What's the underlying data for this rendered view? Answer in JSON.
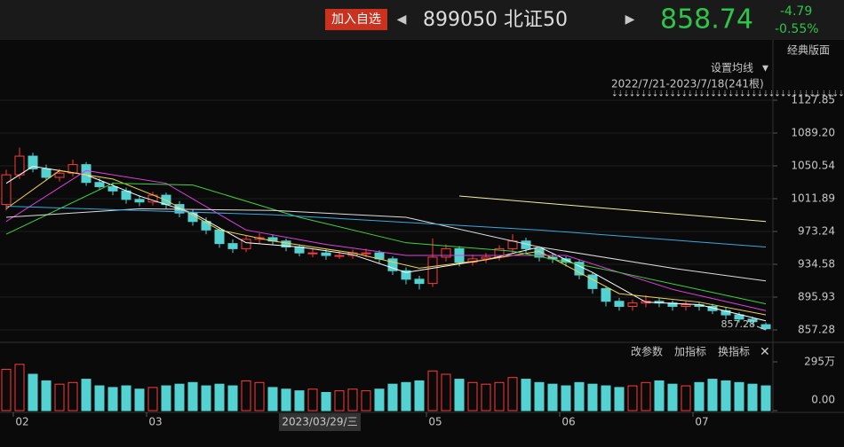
{
  "header": {
    "button": "加入自选",
    "code_name": "899050 北证50",
    "price": "858.74",
    "change": "-4.79",
    "change_pct": "-0.55%",
    "layout": "经典版面"
  },
  "controls": {
    "ma_setting": "设置均线",
    "range": "2022/7/21-2023/7/18(241根)",
    "toolbar": [
      "改参数",
      "加指标",
      "换指标"
    ],
    "cursor_label": "2023/03/29/三"
  },
  "chart_data": {
    "type": "candlestick",
    "up_color": "#ff3b3b",
    "down_color": "#54d1d1",
    "grid": true,
    "ylim": [
      843.7,
      1172.8
    ],
    "yticks": [
      {
        "value": 857.28,
        "label": "857.28"
      },
      {
        "value": 895.93,
        "label": "895.93"
      },
      {
        "value": 934.58,
        "label": "934.58"
      },
      {
        "value": 973.24,
        "label": "973.24"
      },
      {
        "value": 1011.89,
        "label": "1011.89"
      },
      {
        "value": 1050.54,
        "label": "1050.54"
      },
      {
        "value": 1089.2,
        "label": "1089.20"
      },
      {
        "value": 1127.85,
        "label": "1127.85"
      }
    ],
    "xticks": [
      {
        "value": 1.2,
        "label": "02"
      },
      {
        "value": 11.2,
        "label": "03"
      },
      {
        "value": 32.2,
        "label": "05"
      },
      {
        "value": 42.2,
        "label": "06"
      },
      {
        "value": 52.2,
        "label": "07"
      }
    ],
    "low_annotation": 857.28,
    "candles": [
      [
        1005,
        1046,
        998,
        1040
      ],
      [
        1040,
        1072,
        1035,
        1062
      ],
      [
        1062,
        1066,
        1043,
        1047
      ],
      [
        1047,
        1052,
        1033,
        1037
      ],
      [
        1037,
        1047,
        1032,
        1042
      ],
      [
        1042,
        1058,
        1038,
        1052
      ],
      [
        1052,
        1055,
        1027,
        1031
      ],
      [
        1031,
        1036,
        1022,
        1026
      ],
      [
        1026,
        1031,
        1016,
        1021
      ],
      [
        1021,
        1025,
        1006,
        1011
      ],
      [
        1011,
        1016,
        1003,
        1008
      ],
      [
        1008,
        1020,
        1004,
        1016
      ],
      [
        1016,
        1019,
        1000,
        1005
      ],
      [
        1005,
        1009,
        990,
        995
      ],
      [
        995,
        999,
        980,
        985
      ],
      [
        985,
        990,
        970,
        975
      ],
      [
        975,
        978,
        954,
        959
      ],
      [
        959,
        964,
        948,
        953
      ],
      [
        953,
        968,
        949,
        964
      ],
      [
        964,
        971,
        959,
        966
      ],
      [
        966,
        970,
        957,
        962
      ],
      [
        962,
        965,
        950,
        955
      ],
      [
        955,
        958,
        944,
        948
      ],
      [
        948,
        953,
        943,
        948
      ],
      [
        948,
        952,
        940,
        945
      ],
      [
        945,
        950,
        941,
        945
      ],
      [
        945,
        952,
        941,
        948
      ],
      [
        948,
        953,
        943,
        948
      ],
      [
        948,
        951,
        936,
        941
      ],
      [
        941,
        944,
        922,
        927
      ],
      [
        927,
        931,
        911,
        917
      ],
      [
        917,
        921,
        905,
        912
      ],
      [
        912,
        965,
        908,
        943
      ],
      [
        943,
        958,
        938,
        953
      ],
      [
        953,
        956,
        932,
        937
      ],
      [
        937,
        946,
        933,
        941
      ],
      [
        941,
        948,
        936,
        943
      ],
      [
        943,
        957,
        939,
        953
      ],
      [
        953,
        970,
        948,
        962
      ],
      [
        962,
        966,
        948,
        953
      ],
      [
        953,
        956,
        938,
        943
      ],
      [
        943,
        947,
        936,
        941
      ],
      [
        941,
        944,
        932,
        937
      ],
      [
        937,
        940,
        917,
        922
      ],
      [
        922,
        925,
        900,
        906
      ],
      [
        906,
        909,
        885,
        891
      ],
      [
        891,
        895,
        880,
        885
      ],
      [
        885,
        893,
        880,
        889
      ],
      [
        889,
        898,
        884,
        891
      ],
      [
        891,
        895,
        884,
        889
      ],
      [
        889,
        892,
        880,
        885
      ],
      [
        885,
        891,
        880,
        887
      ],
      [
        887,
        890,
        880,
        885
      ],
      [
        885,
        888,
        876,
        880
      ],
      [
        880,
        884,
        870,
        875
      ],
      [
        875,
        878,
        866,
        870
      ],
      [
        870,
        873,
        862,
        867
      ],
      [
        863.5,
        866,
        857.28,
        858.74
      ]
    ],
    "volume": [
      250,
      280,
      220,
      180,
      160,
      170,
      190,
      150,
      140,
      150,
      130,
      140,
      150,
      160,
      170,
      150,
      160,
      150,
      180,
      170,
      140,
      130,
      120,
      130,
      110,
      120,
      130,
      120,
      130,
      160,
      170,
      180,
      240,
      220,
      190,
      170,
      160,
      170,
      200,
      190,
      170,
      160,
      150,
      170,
      160,
      150,
      140,
      150,
      170,
      180,
      160,
      150,
      170,
      190,
      180,
      170,
      160,
      150
    ],
    "vlim": [
      0,
      295
    ],
    "vticks": [
      {
        "value": 295,
        "label": "295万"
      },
      {
        "value": 0,
        "label": "0.00"
      }
    ],
    "series": [
      {
        "color": "#ffffff",
        "x": [
          0,
          2,
          6,
          10,
          14,
          18,
          22,
          26,
          30,
          32,
          36,
          40,
          44,
          48,
          52,
          57
        ],
        "values": [
          1030,
          1050,
          1040,
          1015,
          995,
          960,
          955,
          946,
          925,
          930,
          940,
          955,
          925,
          890,
          887,
          868
        ]
      },
      {
        "color": "#f2d250",
        "x": [
          0,
          4,
          8,
          12,
          16,
          20,
          26,
          31,
          36,
          40,
          46,
          52,
          57
        ],
        "values": [
          1000,
          1045,
          1035,
          1010,
          975,
          962,
          948,
          930,
          940,
          950,
          900,
          890,
          875
        ]
      },
      {
        "color": "#e040e0",
        "x": [
          0,
          6,
          12,
          18,
          24,
          30,
          36,
          42,
          50,
          57
        ],
        "values": [
          985,
          1045,
          1030,
          975,
          958,
          945,
          945,
          945,
          905,
          880
        ]
      },
      {
        "color": "#3fd23f",
        "x": [
          0,
          8,
          14,
          22,
          30,
          38,
          46,
          57
        ],
        "values": [
          970,
          1030,
          1028,
          990,
          960,
          950,
          925,
          888
        ]
      },
      {
        "color": "#dddddd",
        "x": [
          0,
          10,
          20,
          30,
          40,
          50,
          57
        ],
        "values": [
          990,
          1000,
          998,
          990,
          955,
          930,
          915
        ]
      },
      {
        "color": "#3aa8e0",
        "x": [
          0,
          20,
          40,
          57
        ],
        "values": [
          1003,
          993,
          975,
          955
        ]
      },
      {
        "color": "#f0f0a0",
        "x": [
          34,
          57
        ],
        "values": [
          1015,
          985
        ]
      }
    ]
  }
}
